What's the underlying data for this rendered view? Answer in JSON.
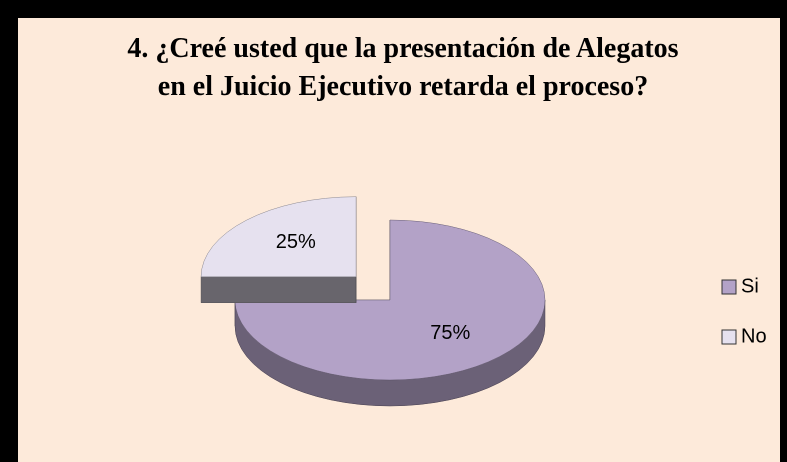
{
  "chart_data": {
    "type": "pie",
    "title": "4. ¿Creé usted que la  presentación de Alegatos  en el Juicio Ejecutivo retarda el proceso?",
    "categories": [
      "Si",
      "No"
    ],
    "values": [
      75,
      25
    ],
    "value_labels": [
      "75%",
      "25%"
    ],
    "colors": [
      "#b3a2c7",
      "#e6e1ef"
    ],
    "legend": "right"
  }
}
